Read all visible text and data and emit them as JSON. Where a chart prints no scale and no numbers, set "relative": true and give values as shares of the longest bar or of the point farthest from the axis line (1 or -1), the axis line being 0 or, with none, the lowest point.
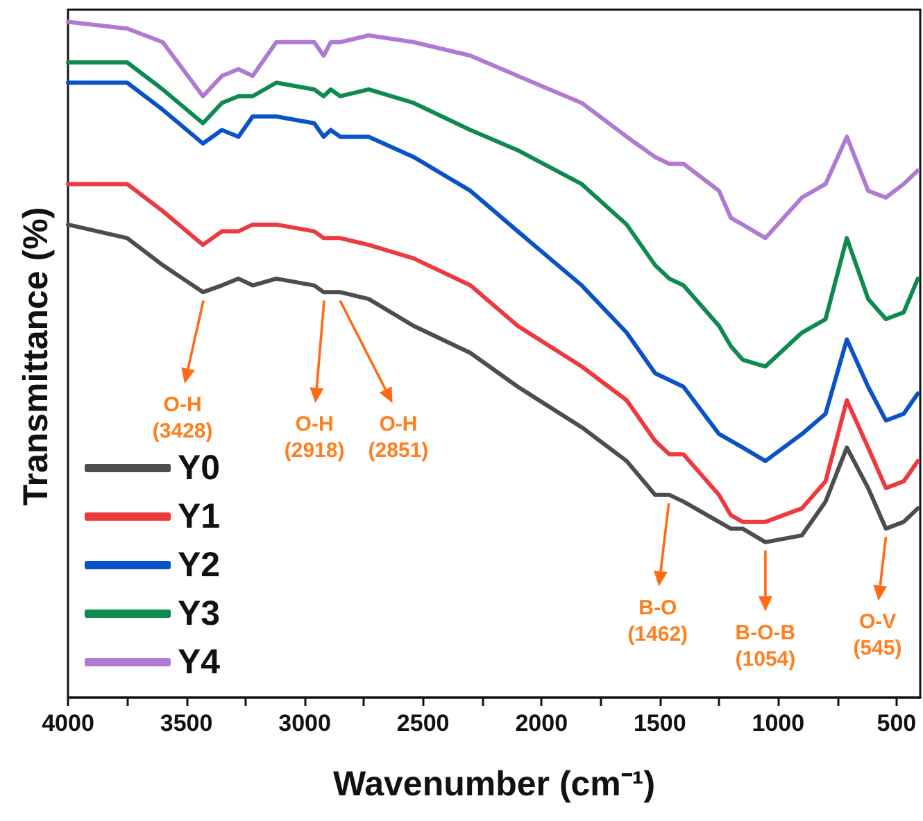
{
  "chart_data": {
    "type": "line",
    "relative": true,
    "xlabel": "Wavenumber (cm⁻¹)",
    "ylabel": "Transmittance (%)",
    "x": [
      4000,
      3750,
      3600,
      3430,
      3350,
      3280,
      3220,
      3120,
      2960,
      2920,
      2890,
      2850,
      2730,
      2540,
      2300,
      2100,
      1830,
      1640,
      1520,
      1460,
      1400,
      1250,
      1200,
      1150,
      1054,
      900,
      800,
      710,
      620,
      545,
      470,
      410
    ],
    "xlim": [
      4000,
      400
    ],
    "xticks": [
      4000,
      {
        "value": 3750,
        "label": null
      },
      3500,
      {
        "value": 3250,
        "label": null
      },
      3000,
      {
        "value": 2750,
        "label": null
      },
      2500,
      {
        "value": 2250,
        "label": null
      },
      2000,
      {
        "value": 1750,
        "label": null
      },
      1500,
      {
        "value": 1250,
        "label": null
      },
      1000,
      {
        "value": 750,
        "label": null
      },
      500
    ],
    "series": [
      {
        "name": "Y0",
        "color": "#4d4d4d",
        "values": [
          0.7,
          0.68,
          0.64,
          0.6,
          0.61,
          0.62,
          0.61,
          0.62,
          0.61,
          0.6,
          0.6,
          0.6,
          0.59,
          0.55,
          0.51,
          0.46,
          0.4,
          0.35,
          0.3,
          0.3,
          0.29,
          0.26,
          0.25,
          0.25,
          0.23,
          0.24,
          0.29,
          0.37,
          0.31,
          0.25,
          0.26,
          0.28
        ]
      },
      {
        "name": "Y1",
        "color": "#ec3a3e",
        "values": [
          0.76,
          0.76,
          0.72,
          0.67,
          0.69,
          0.69,
          0.7,
          0.7,
          0.69,
          0.68,
          0.68,
          0.68,
          0.67,
          0.65,
          0.61,
          0.55,
          0.49,
          0.44,
          0.38,
          0.36,
          0.36,
          0.3,
          0.27,
          0.26,
          0.26,
          0.28,
          0.32,
          0.44,
          0.37,
          0.31,
          0.32,
          0.35
        ]
      },
      {
        "name": "Y2",
        "color": "#0a52c8",
        "values": [
          0.91,
          0.91,
          0.87,
          0.82,
          0.84,
          0.83,
          0.86,
          0.86,
          0.85,
          0.83,
          0.84,
          0.83,
          0.83,
          0.8,
          0.75,
          0.69,
          0.61,
          0.54,
          0.48,
          0.47,
          0.46,
          0.39,
          0.38,
          0.37,
          0.35,
          0.39,
          0.42,
          0.53,
          0.46,
          0.41,
          0.42,
          0.45
        ]
      },
      {
        "name": "Y3",
        "color": "#0e8a50",
        "values": [
          0.94,
          0.94,
          0.9,
          0.85,
          0.88,
          0.89,
          0.89,
          0.91,
          0.9,
          0.89,
          0.9,
          0.89,
          0.9,
          0.88,
          0.84,
          0.81,
          0.76,
          0.7,
          0.64,
          0.62,
          0.61,
          0.55,
          0.52,
          0.5,
          0.49,
          0.54,
          0.56,
          0.68,
          0.59,
          0.56,
          0.57,
          0.62
        ]
      },
      {
        "name": "Y4",
        "color": "#b07ad2",
        "values": [
          1.0,
          0.99,
          0.97,
          0.89,
          0.92,
          0.93,
          0.92,
          0.97,
          0.97,
          0.95,
          0.97,
          0.97,
          0.98,
          0.97,
          0.95,
          0.92,
          0.88,
          0.83,
          0.8,
          0.79,
          0.79,
          0.75,
          0.71,
          0.7,
          0.68,
          0.74,
          0.76,
          0.83,
          0.75,
          0.74,
          0.76,
          0.78
        ]
      }
    ],
    "annotations": [
      {
        "text": "O-H\n(3428)",
        "x": 3428,
        "y": 0.6
      },
      {
        "text": "O-H\n(2918)",
        "x": 2918,
        "y": 0.6
      },
      {
        "text": "O-H\n(2851)",
        "x": 2851,
        "y": 0.6
      },
      {
        "text": "B-O\n(1462)",
        "x": 1462,
        "y": 0.3
      },
      {
        "text": "B-O-B\n(1054)",
        "x": 1054,
        "y": 0.23
      },
      {
        "text": "O-V\n(545)",
        "x": 545,
        "y": 0.25
      }
    ],
    "legend": "bottom left",
    "grid": false,
    "marker": "none",
    "line_style": "solid"
  }
}
